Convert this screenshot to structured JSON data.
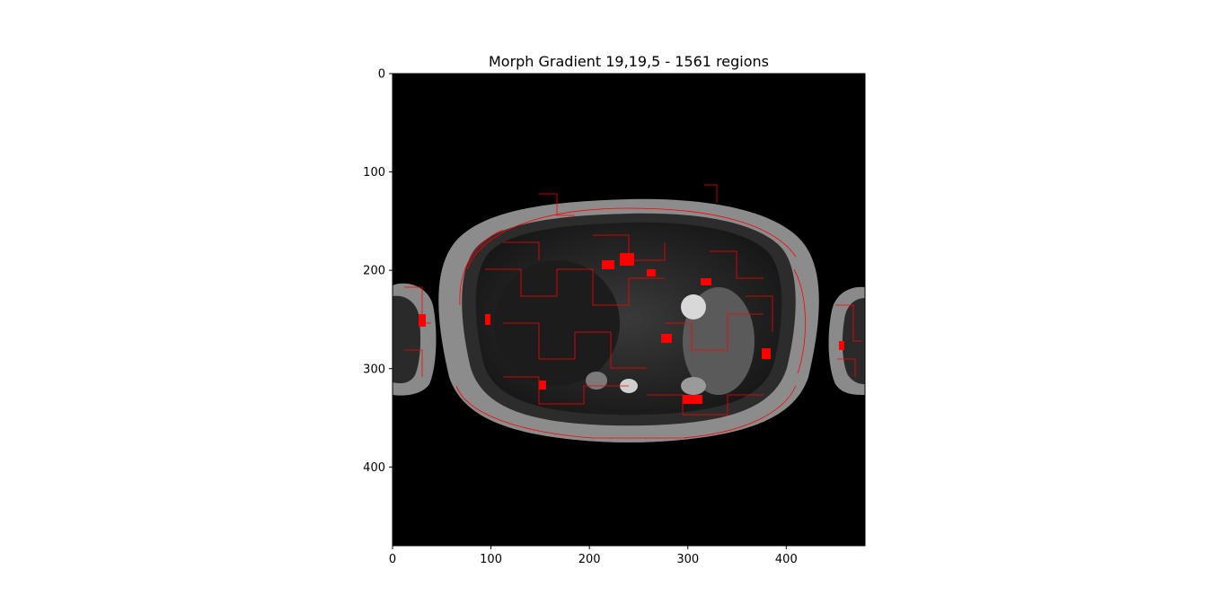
{
  "figure": {
    "title": "Morph Gradient 19,19,5 - 1561 regions"
  },
  "axes": {
    "x_range": [
      0,
      480
    ],
    "y_range": [
      0,
      480
    ],
    "y_inverted": true,
    "x_ticks": [
      0,
      100,
      200,
      300,
      400
    ],
    "y_ticks": [
      0,
      100,
      200,
      300,
      400
    ],
    "x_tick_labels": [
      "0",
      "100",
      "200",
      "300",
      "400"
    ],
    "y_tick_labels": [
      "0",
      "100",
      "200",
      "300",
      "400"
    ]
  },
  "image": {
    "content": "axial abdominal MRI slice with red region boundary overlay",
    "background_color": "#000000",
    "overlay_color": "#ff0000"
  }
}
